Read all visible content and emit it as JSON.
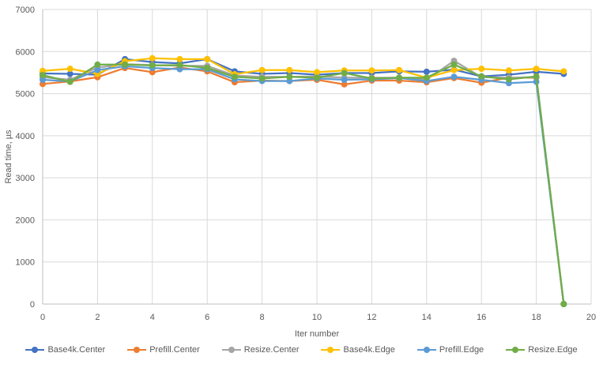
{
  "chart_data": {
    "type": "line",
    "title": "",
    "xlabel": "Iter number",
    "ylabel": "Read time, µs",
    "xlim": [
      0,
      20
    ],
    "ylim": [
      0,
      7000
    ],
    "x_ticks": [
      "0",
      "2",
      "4",
      "6",
      "8",
      "10",
      "12",
      "14",
      "16",
      "18",
      "20"
    ],
    "y_ticks": [
      "0",
      "1000",
      "2000",
      "3000",
      "4000",
      "5000",
      "6000",
      "7000"
    ],
    "grid": true,
    "legend_position": "bottom",
    "x": [
      0,
      1,
      2,
      3,
      4,
      5,
      6,
      7,
      8,
      9,
      10,
      11,
      12,
      13,
      14,
      15,
      16,
      17,
      18,
      19
    ],
    "series": [
      {
        "name": "Base4k.Center",
        "color": "#4472C4",
        "values": [
          5480,
          5470,
          5450,
          5820,
          5750,
          5720,
          5820,
          5530,
          5470,
          5490,
          5450,
          5490,
          5490,
          5530,
          5520,
          5570,
          5410,
          5450,
          5520,
          5470
        ]
      },
      {
        "name": "Prefill.Center",
        "color": "#ED7D31",
        "values": [
          5230,
          5290,
          5390,
          5610,
          5510,
          5620,
          5530,
          5270,
          5310,
          5300,
          5330,
          5220,
          5310,
          5310,
          5270,
          5370,
          5260,
          5380,
          5380,
          0
        ]
      },
      {
        "name": "Resize.Center",
        "color": "#A5A5A5",
        "values": [
          5390,
          5330,
          5620,
          5700,
          5680,
          5660,
          5660,
          5430,
          5400,
          5400,
          5410,
          5380,
          5380,
          5380,
          5330,
          5780,
          5390,
          5380,
          5390,
          0
        ]
      },
      {
        "name": "Base4k.Edge",
        "color": "#FFC000",
        "values": [
          5540,
          5590,
          5470,
          5770,
          5840,
          5820,
          5820,
          5460,
          5560,
          5560,
          5510,
          5550,
          5550,
          5560,
          5380,
          5560,
          5590,
          5550,
          5590,
          5530
        ]
      },
      {
        "name": "Prefill.Edge",
        "color": "#5B9BD5",
        "values": [
          5330,
          5290,
          5560,
          5650,
          5610,
          5580,
          5580,
          5340,
          5300,
          5300,
          5360,
          5330,
          5340,
          5370,
          5300,
          5400,
          5330,
          5250,
          5280,
          0
        ]
      },
      {
        "name": "Resize.Edge",
        "color": "#70AD47",
        "values": [
          5440,
          5280,
          5690,
          5690,
          5670,
          5680,
          5610,
          5400,
          5360,
          5400,
          5380,
          5490,
          5360,
          5380,
          5380,
          5690,
          5410,
          5340,
          5410,
          0
        ]
      }
    ]
  }
}
